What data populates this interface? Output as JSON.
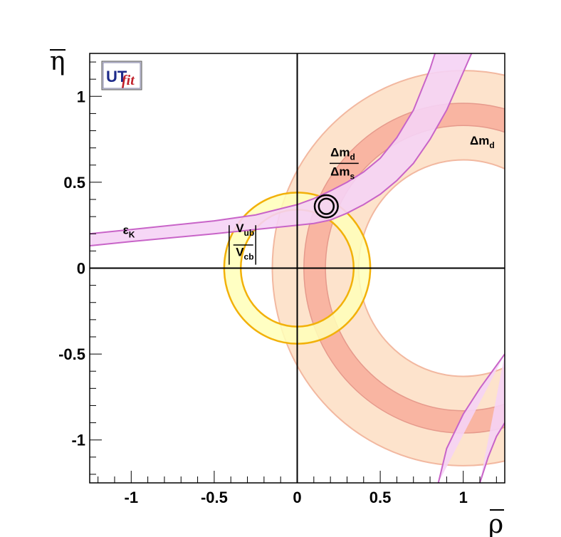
{
  "chart_data": {
    "type": "contour",
    "x_axis": {
      "label": "ρ",
      "range": [
        -1.25,
        1.25
      ],
      "ticks": [
        -1,
        -0.5,
        0,
        0.5,
        1
      ],
      "tick_labels": [
        "-1",
        "-0.5",
        "0",
        "0.5",
        "1"
      ]
    },
    "y_axis": {
      "label": "η",
      "range": [
        -1.25,
        1.25
      ],
      "ticks": [
        -1,
        -0.5,
        0,
        0.5,
        1
      ],
      "tick_labels": [
        "-1",
        "-0.5",
        "0",
        "0.5",
        "1"
      ]
    },
    "logo": {
      "part1": "UT",
      "part2": "fit"
    },
    "constraints": [
      {
        "id": "dmd",
        "shape": "annulus",
        "center": [
          1,
          0
        ],
        "r_outer": 1.15,
        "r_inner": 0.63,
        "inner_band": [
          0.83,
          0.96
        ],
        "fill_outer": "#fde3cc",
        "fill_inner": "#f9b5a2",
        "stroke": "#f2b8a0",
        "label": "Δm_d"
      },
      {
        "id": "vub_vcb",
        "shape": "annulus",
        "center": [
          0,
          0
        ],
        "r_outer": 0.44,
        "r_inner": 0.34,
        "fill": "#ffffb8",
        "stroke": "#f2b10a",
        "label": "|V_ub / V_cb|"
      },
      {
        "id": "epsK",
        "shape": "hyperbolic-band",
        "fill": "#f5d3f5",
        "stroke": "#c864c8",
        "lower_edge": [
          [
            -1.25,
            0.13
          ],
          [
            -1.0,
            0.155
          ],
          [
            -0.5,
            0.2
          ],
          [
            -0.25,
            0.225
          ],
          [
            0,
            0.25
          ],
          [
            0.1,
            0.26
          ],
          [
            0.2,
            0.28
          ],
          [
            0.3,
            0.32
          ],
          [
            0.4,
            0.37
          ],
          [
            0.5,
            0.43
          ],
          [
            0.6,
            0.51
          ],
          [
            0.7,
            0.61
          ],
          [
            0.8,
            0.75
          ],
          [
            0.9,
            0.92
          ],
          [
            0.95,
            1.03
          ],
          [
            1.0,
            1.14
          ],
          [
            1.05,
            1.25
          ]
        ],
        "upper_edge": [
          [
            -1.25,
            0.2
          ],
          [
            -1.0,
            0.225
          ],
          [
            -0.5,
            0.275
          ],
          [
            -0.25,
            0.31
          ],
          [
            0,
            0.37
          ],
          [
            0.1,
            0.405
          ],
          [
            0.2,
            0.45
          ],
          [
            0.3,
            0.5
          ],
          [
            0.4,
            0.56
          ],
          [
            0.5,
            0.64
          ],
          [
            0.6,
            0.76
          ],
          [
            0.7,
            0.92
          ],
          [
            0.75,
            1.04
          ],
          [
            0.8,
            1.16
          ],
          [
            0.83,
            1.25
          ]
        ],
        "lower_branch_inner": [
          [
            0.85,
            -1.25
          ],
          [
            0.9,
            -1.05
          ],
          [
            1.0,
            -0.85
          ],
          [
            1.1,
            -0.7
          ],
          [
            1.25,
            -0.5
          ]
        ],
        "lower_branch_outer": [
          [
            1.1,
            -1.25
          ],
          [
            1.15,
            -1.1
          ],
          [
            1.2,
            -0.98
          ],
          [
            1.25,
            -0.9
          ]
        ],
        "label": "ε_K"
      },
      {
        "id": "dmd_dms",
        "shape": "fit-contours",
        "center": [
          0.175,
          0.36
        ],
        "contours": [
          {
            "rx": 0.045,
            "ry": 0.045
          },
          {
            "rx": 0.07,
            "ry": 0.065
          }
        ],
        "stroke": "#000000",
        "label": "Δm_d / Δm_s"
      }
    ],
    "annotations": [
      {
        "text": "Δm",
        "sub": "d",
        "x": 1.04,
        "y": 0.72
      },
      {
        "text": "ε",
        "sub": "K",
        "x": -1.05,
        "y": 0.2
      },
      {
        "text": "V",
        "sub": "ub",
        "x": -0.37,
        "y": 0.21
      },
      {
        "text": "V",
        "sub": "cb",
        "x": -0.37,
        "y": 0.07
      },
      {
        "text": "Δm",
        "sub": "d",
        "x": 0.2,
        "y": 0.65
      },
      {
        "text": "Δm",
        "sub": "s",
        "x": 0.2,
        "y": 0.54
      }
    ]
  }
}
